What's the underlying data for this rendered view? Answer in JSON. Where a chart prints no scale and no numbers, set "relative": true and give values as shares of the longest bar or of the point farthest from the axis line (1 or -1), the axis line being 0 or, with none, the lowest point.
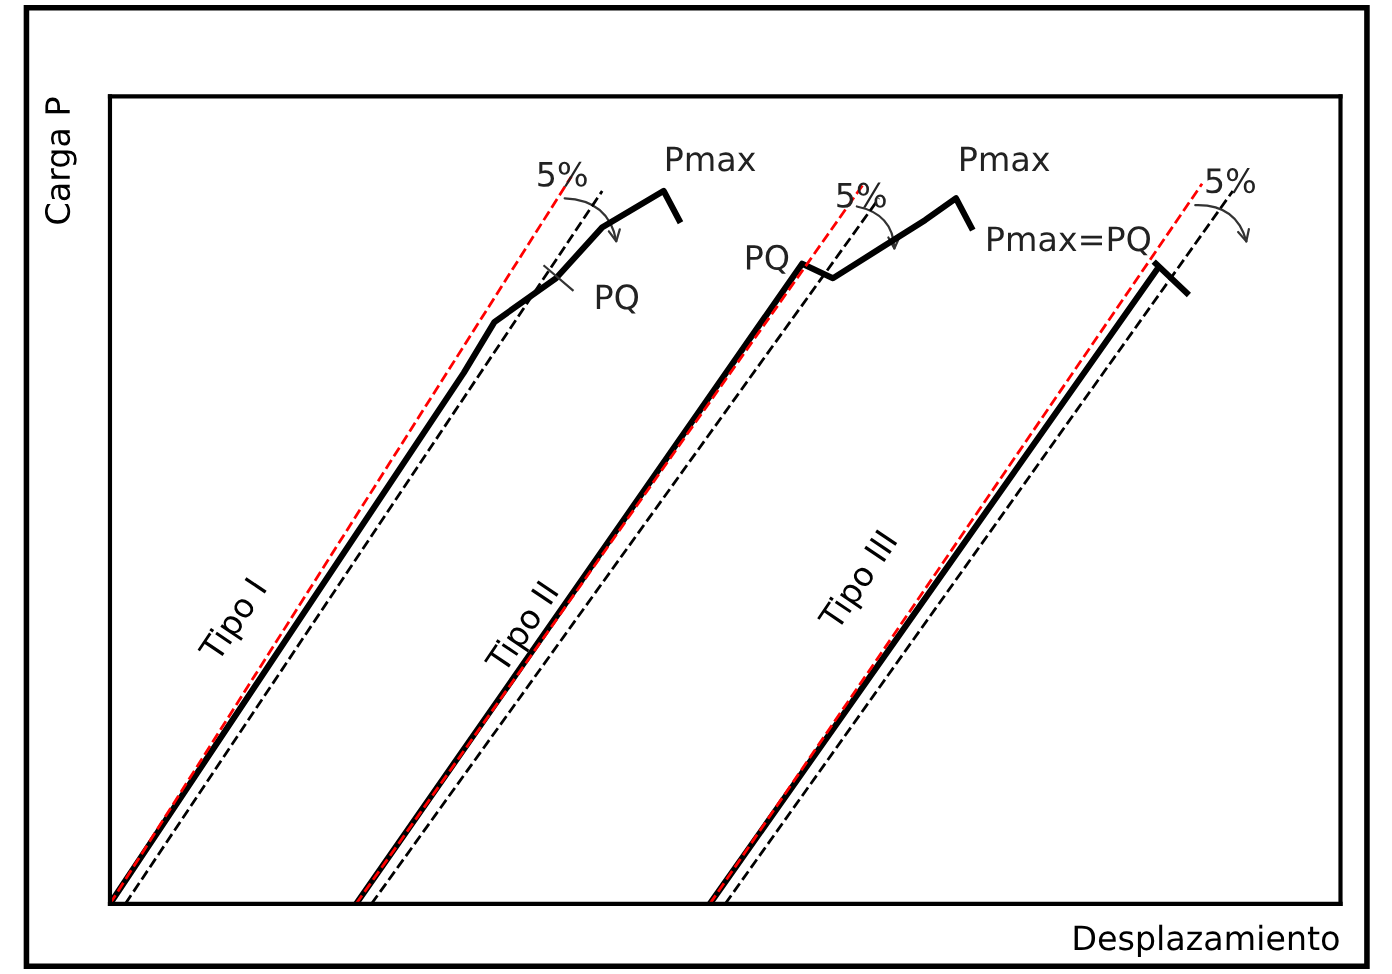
{
  "chart_data": {
    "type": "line",
    "relative": true,
    "xlabel": "Desplazamiento",
    "ylabel": "Carga P",
    "categories": [
      null,
      null,
      null,
      null,
      null,
      null,
      null,
      null,
      null,
      null,
      null,
      null,
      null,
      null,
      null,
      null,
      null,
      null,
      null,
      null,
      null,
      null,
      null,
      null,
      null,
      null,
      null,
      null,
      null,
      null,
      null,
      null,
      null,
      null,
      null,
      null,
      null,
      null,
      null,
      null,
      null,
      null,
      null,
      null,
      null,
      null,
      null,
      null,
      null,
      null,
      null,
      null,
      null,
      null,
      null,
      null,
      null,
      null,
      null,
      null,
      null,
      null,
      null,
      null,
      null,
      null,
      null,
      null,
      null,
      null,
      null,
      null,
      null,
      null,
      null,
      null,
      null,
      null,
      null,
      null,
      null
    ],
    "series": [
      {
        "color": "#000000",
        "line_style": "solid",
        "values": [
          0,
          null,
          null,
          null,
          null,
          null,
          null,
          null,
          null,
          null,
          null,
          null,
          null,
          null,
          null,
          null,
          null,
          null,
          null,
          null,
          null,
          null,
          null,
          0.73,
          null,
          0.8,
          null,
          null,
          null,
          0.86,
          null,
          null,
          0.93,
          null,
          null,
          null,
          0.98,
          0.94,
          null,
          null,
          null,
          null,
          null,
          null,
          null,
          null,
          null,
          null,
          null,
          null,
          null,
          null,
          null,
          null,
          null,
          null,
          null,
          null,
          null,
          null,
          null,
          null,
          null,
          null,
          null,
          null,
          null,
          null,
          null,
          null,
          null,
          null,
          null,
          null,
          null,
          null,
          null,
          null,
          null,
          null,
          null
        ]
      },
      {
        "color": "#ff0000",
        "line_style": "dashed",
        "values": [
          0,
          null,
          null,
          null,
          null,
          null,
          null,
          null,
          null,
          null,
          null,
          null,
          null,
          null,
          null,
          null,
          null,
          null,
          null,
          null,
          null,
          null,
          null,
          null,
          null,
          null,
          null,
          null,
          null,
          null,
          1.0,
          null,
          null,
          null,
          null,
          null,
          null,
          null,
          null,
          null,
          null,
          null,
          null,
          null,
          null,
          null,
          null,
          null,
          null,
          null,
          null,
          null,
          null,
          null,
          null,
          null,
          null,
          null,
          null,
          null,
          null,
          null,
          null,
          null,
          null,
          null,
          null,
          null,
          null,
          null,
          null,
          null,
          null,
          null,
          null,
          null,
          null,
          null,
          null,
          null,
          null
        ]
      },
      {
        "color": "#000000",
        "line_style": "dashed",
        "values": [
          null,
          0,
          null,
          null,
          null,
          null,
          null,
          null,
          null,
          null,
          null,
          null,
          null,
          null,
          null,
          null,
          null,
          null,
          null,
          null,
          null,
          null,
          null,
          null,
          null,
          null,
          null,
          null,
          null,
          null,
          null,
          null,
          0.98,
          null,
          null,
          null,
          null,
          null,
          null,
          null,
          null,
          null,
          null,
          null,
          null,
          null,
          null,
          null,
          null,
          null,
          null,
          null,
          null,
          null,
          null,
          null,
          null,
          null,
          null,
          null,
          null,
          null,
          null,
          null,
          null,
          null,
          null,
          null,
          null,
          null,
          null,
          null,
          null,
          null,
          null,
          null,
          null,
          null,
          null,
          null,
          null
        ]
      },
      {
        "color": "#000000",
        "line_style": "solid",
        "values": [
          null,
          null,
          null,
          null,
          null,
          null,
          null,
          null,
          null,
          null,
          null,
          null,
          null,
          null,
          null,
          null,
          0,
          null,
          null,
          null,
          null,
          null,
          null,
          null,
          null,
          null,
          null,
          null,
          null,
          null,
          null,
          null,
          null,
          null,
          null,
          null,
          null,
          null,
          null,
          null,
          null,
          null,
          null,
          null,
          null,
          0.88,
          null,
          0.86,
          null,
          null,
          0.9,
          null,
          null,
          0.94,
          null,
          0.97,
          0.93,
          null,
          null,
          null,
          null,
          null,
          null,
          null,
          null,
          null,
          null,
          null,
          null,
          null,
          null,
          null,
          null,
          null,
          null,
          null,
          null,
          null,
          null,
          null,
          null
        ]
      },
      {
        "color": "#ff0000",
        "line_style": "dashed",
        "values": [
          null,
          null,
          null,
          null,
          null,
          null,
          null,
          null,
          null,
          null,
          null,
          null,
          null,
          null,
          null,
          null,
          0,
          null,
          null,
          null,
          null,
          null,
          null,
          null,
          null,
          null,
          null,
          null,
          null,
          null,
          null,
          null,
          null,
          null,
          null,
          null,
          null,
          null,
          null,
          null,
          null,
          null,
          null,
          null,
          null,
          null,
          null,
          null,
          null,
          0.99,
          null,
          null,
          null,
          null,
          null,
          null,
          null,
          null,
          null,
          null,
          null,
          null,
          null,
          null,
          null,
          null,
          null,
          null,
          null,
          null,
          null,
          null,
          null,
          null,
          null,
          null,
          null,
          null,
          null,
          null,
          null
        ]
      },
      {
        "color": "#000000",
        "line_style": "dashed",
        "values": [
          null,
          null,
          null,
          null,
          null,
          null,
          null,
          null,
          null,
          null,
          null,
          null,
          null,
          null,
          null,
          null,
          null,
          0,
          null,
          null,
          null,
          null,
          null,
          null,
          null,
          null,
          null,
          null,
          null,
          null,
          null,
          null,
          null,
          null,
          null,
          null,
          null,
          null,
          null,
          null,
          null,
          null,
          null,
          null,
          null,
          null,
          null,
          null,
          null,
          null,
          0.97,
          null,
          null,
          null,
          null,
          null,
          null,
          null,
          null,
          null,
          null,
          null,
          null,
          null,
          null,
          null,
          null,
          null,
          null,
          null,
          null,
          null,
          null,
          null,
          null,
          null,
          null,
          null,
          null,
          null,
          null
        ]
      },
      {
        "color": "#000000",
        "line_style": "solid",
        "values": [
          null,
          null,
          null,
          null,
          null,
          null,
          null,
          null,
          null,
          null,
          null,
          null,
          null,
          null,
          null,
          null,
          null,
          null,
          null,
          null,
          null,
          null,
          null,
          null,
          null,
          null,
          null,
          null,
          null,
          null,
          null,
          null,
          null,
          null,
          null,
          null,
          null,
          null,
          null,
          0,
          null,
          null,
          null,
          null,
          null,
          null,
          null,
          null,
          null,
          null,
          null,
          null,
          null,
          null,
          null,
          null,
          null,
          null,
          null,
          null,
          null,
          null,
          null,
          null,
          null,
          null,
          null,
          null,
          0.87,
          null,
          null,
          null,
          null,
          null,
          null,
          null,
          null,
          null,
          null,
          null,
          null
        ]
      },
      {
        "color": "#ff0000",
        "line_style": "dashed",
        "values": [
          null,
          null,
          null,
          null,
          null,
          null,
          null,
          null,
          null,
          null,
          null,
          null,
          null,
          null,
          null,
          null,
          null,
          null,
          null,
          null,
          null,
          null,
          null,
          null,
          null,
          null,
          null,
          null,
          null,
          null,
          null,
          null,
          null,
          null,
          null,
          null,
          null,
          null,
          null,
          0,
          null,
          null,
          null,
          null,
          null,
          null,
          null,
          null,
          null,
          null,
          null,
          null,
          null,
          null,
          null,
          null,
          null,
          null,
          null,
          null,
          null,
          null,
          null,
          null,
          null,
          null,
          null,
          null,
          null,
          null,
          null,
          0.99,
          null,
          null,
          null,
          null,
          null,
          null,
          null,
          null,
          null
        ]
      },
      {
        "color": "#000000",
        "line_style": "dashed",
        "values": [
          null,
          null,
          null,
          null,
          null,
          null,
          null,
          null,
          null,
          null,
          null,
          null,
          null,
          null,
          null,
          null,
          null,
          null,
          null,
          null,
          null,
          null,
          null,
          null,
          null,
          null,
          null,
          null,
          null,
          null,
          null,
          null,
          null,
          null,
          null,
          null,
          null,
          null,
          null,
          null,
          0,
          null,
          null,
          null,
          null,
          null,
          null,
          null,
          null,
          null,
          null,
          null,
          null,
          null,
          null,
          null,
          null,
          null,
          null,
          null,
          null,
          null,
          null,
          null,
          null,
          null,
          null,
          null,
          null,
          null,
          null,
          null,
          null,
          0.98,
          null,
          null,
          null,
          null,
          null,
          null,
          null
        ]
      },
      {
        "color": "#000000",
        "line_style": "solid",
        "values": [
          null,
          null,
          null,
          null,
          null,
          null,
          null,
          null,
          null,
          null,
          null,
          null,
          null,
          null,
          null,
          null,
          null,
          null,
          null,
          null,
          null,
          null,
          null,
          null,
          null,
          null,
          null,
          null,
          null,
          null,
          null,
          null,
          null,
          null,
          null,
          null,
          null,
          null,
          null,
          null,
          null,
          null,
          null,
          null,
          null,
          null,
          null,
          null,
          null,
          null,
          null,
          null,
          null,
          null,
          null,
          null,
          null,
          null,
          null,
          null,
          null,
          null,
          null,
          null,
          null,
          null,
          null,
          null,
          0.88,
          null,
          0.84,
          null,
          null,
          null,
          null,
          null,
          null,
          null,
          null,
          null,
          null
        ]
      }
    ],
    "annotations": [
      "Tipo I",
      "Tipo II",
      "Tipo III",
      "Pmax",
      "PQ",
      "PQ",
      "Pmax",
      "Pmax=PQ",
      "5%",
      "5%",
      "5%"
    ]
  }
}
